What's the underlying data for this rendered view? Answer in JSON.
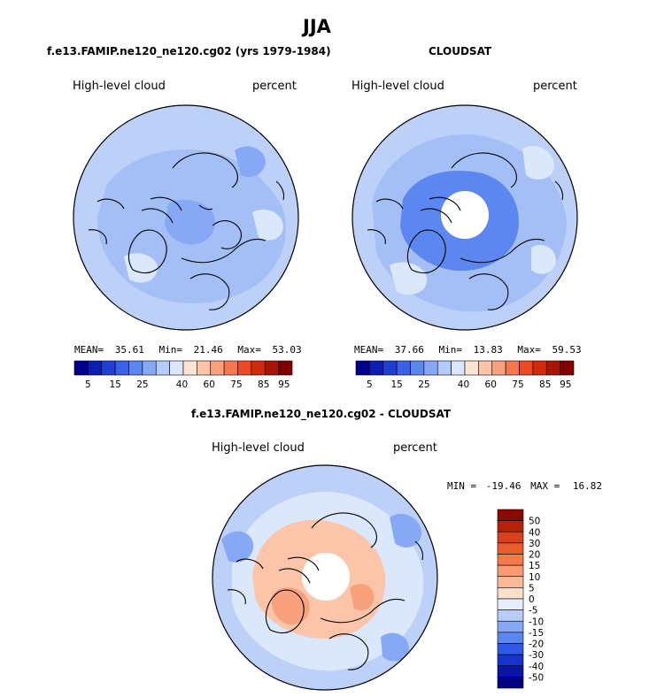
{
  "figure": {
    "title": "JJA",
    "bottom_title": "f.e13.FAMIP.ne120_ne120.cg02 - CLOUDSAT"
  },
  "chart_data": [
    {
      "type": "heatmap",
      "projection": "north-polar-stereographic",
      "title": "f.e13.FAMIP.ne120_ne120.cg02 (yrs 1979-1984)",
      "left_label": "High-level cloud",
      "right_label": "percent",
      "stats": {
        "mean_label": "MEAN=",
        "mean": "35.61",
        "min_label": "Min=",
        "min": "21.46",
        "max_label": "Max=",
        "max": "53.03"
      },
      "colorbar": {
        "orientation": "horizontal",
        "tick_labels": [
          "5",
          "15",
          "25",
          "40",
          "60",
          "75",
          "85",
          "95"
        ],
        "colors": [
          "#00008e",
          "#0c1fb0",
          "#1e3fd0",
          "#3a62e8",
          "#5c86f0",
          "#86a8f5",
          "#b4caf8",
          "#dbe7fb",
          "#fde3d3",
          "#fcc4a8",
          "#f9a07c",
          "#f57650",
          "#eb4a24",
          "#d22a0c",
          "#a81505",
          "#800000"
        ]
      },
      "field_colors": {
        "background": "#bcd0f8",
        "dominant": "#a4bff6",
        "darker": "#86a8f5",
        "lighter": "#dbe7fb"
      }
    },
    {
      "type": "heatmap",
      "projection": "north-polar-stereographic",
      "title": "CLOUDSAT",
      "left_label": "High-level cloud",
      "right_label": "percent",
      "stats": {
        "mean_label": "MEAN=",
        "mean": "37.66",
        "min_label": "Min=",
        "min": "13.83",
        "max_label": "Max=",
        "max": "59.53"
      },
      "colorbar": {
        "orientation": "horizontal",
        "tick_labels": [
          "5",
          "15",
          "25",
          "40",
          "60",
          "75",
          "85",
          "95"
        ],
        "colors": [
          "#00008e",
          "#0c1fb0",
          "#1e3fd0",
          "#3a62e8",
          "#5c86f0",
          "#86a8f5",
          "#b4caf8",
          "#dbe7fb",
          "#fde3d3",
          "#fcc4a8",
          "#f9a07c",
          "#f57650",
          "#eb4a24",
          "#d22a0c",
          "#a81505",
          "#800000"
        ]
      },
      "field_colors": {
        "background": "#bcd0f8",
        "dominant": "#a4bff6",
        "darker": "#5c86f0",
        "lighter": "#dbe7fb"
      },
      "missing_pole": true
    },
    {
      "type": "heatmap",
      "projection": "north-polar-stereographic",
      "title": "f.e13.FAMIP.ne120_ne120.cg02 - CLOUDSAT",
      "left_label": "High-level cloud",
      "right_label": "percent",
      "stats": {
        "min_label": "MIN =",
        "min": "-19.46",
        "max_label": "MAX =",
        "max": "16.82"
      },
      "colorbar": {
        "orientation": "vertical",
        "tick_labels": [
          "50",
          "40",
          "30",
          "20",
          "15",
          "10",
          "5",
          "0",
          "-5",
          "-10",
          "-15",
          "-20",
          "-30",
          "-40",
          "-50"
        ],
        "colors": [
          "#8b0a00",
          "#b3230a",
          "#d8401e",
          "#ed5a2e",
          "#f47a4a",
          "#f89b72",
          "#fbbb98",
          "#fde0cc",
          "#e6eefd",
          "#b7cdf9",
          "#86a8f5",
          "#5c86f0",
          "#2f58e8",
          "#1634c9",
          "#0a14a5",
          "#000080"
        ]
      },
      "field_colors": {
        "background": "#bcd0f8",
        "dominant": "#dbe7fb",
        "warm": "#fcc4a8",
        "warm_dark": "#f9a07c",
        "cool": "#86a8f5"
      },
      "missing_pole": true
    }
  ]
}
